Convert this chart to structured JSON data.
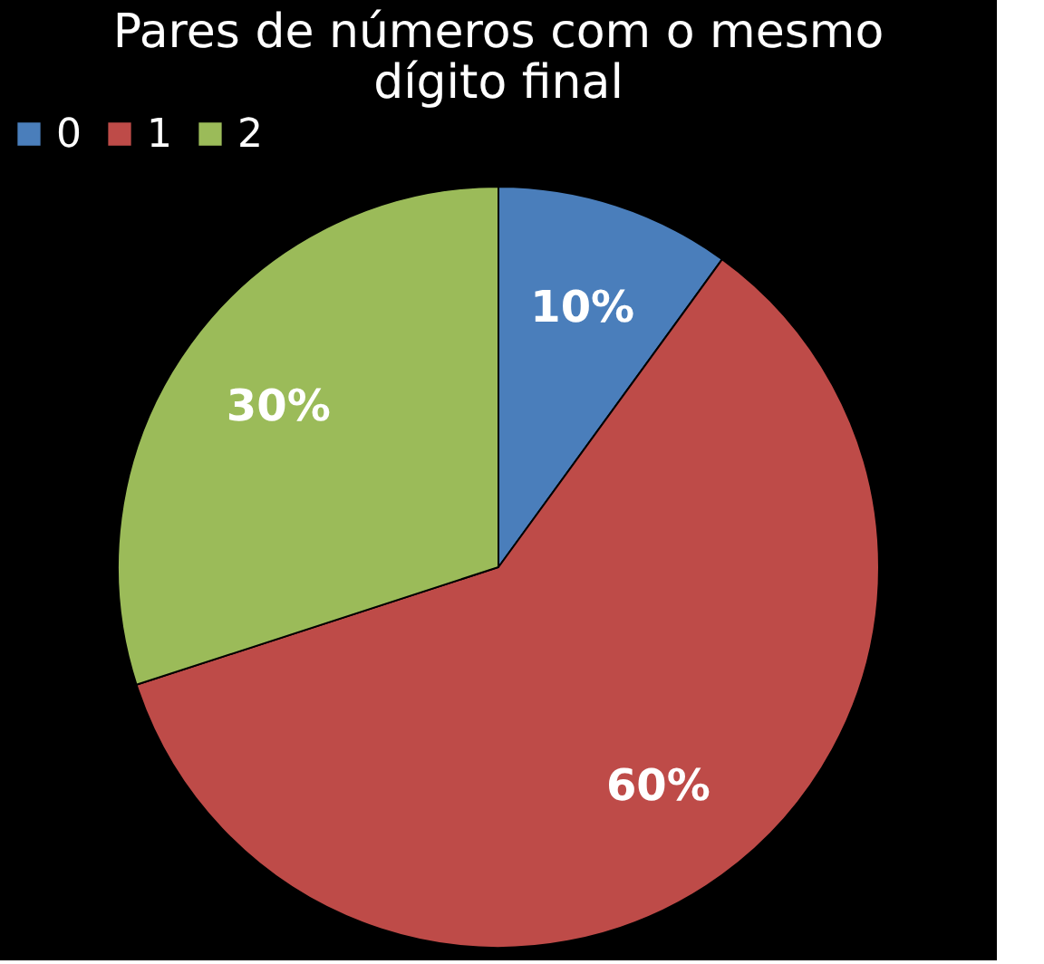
{
  "chart_data": {
    "type": "pie",
    "title": "Pares de números com o mesmo dígito final",
    "categories": [
      "0",
      "1",
      "2"
    ],
    "values": [
      10,
      60,
      30
    ],
    "colors": [
      "#4a7ebb",
      "#be4b48",
      "#9bbb59"
    ],
    "value_labels": [
      "10%",
      "60%",
      "30%"
    ],
    "legend": "top"
  }
}
